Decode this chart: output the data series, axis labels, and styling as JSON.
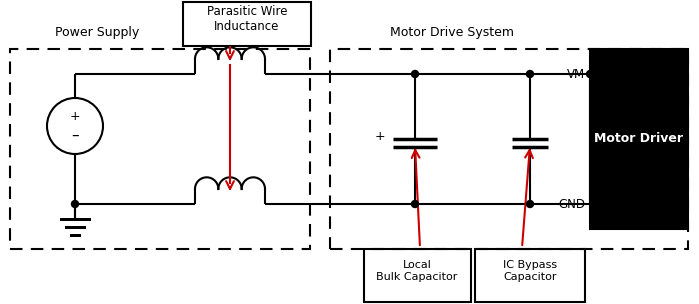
{
  "bg_color": "#ffffff",
  "line_color": "#000000",
  "red_color": "#cc0000",
  "power_supply_label": "Power Supply",
  "motor_drive_label": "Motor Drive System",
  "parasitic_label": "Parasitic Wire\nInductance",
  "local_cap_label": "Local\nBulk Capacitor",
  "bypass_cap_label": "IC Bypass\nCapacitor",
  "vm_label": "VM",
  "gnd_label": "GND",
  "motor_driver_label": "Motor Driver",
  "figw": 6.99,
  "figh": 3.04,
  "dpi": 100
}
